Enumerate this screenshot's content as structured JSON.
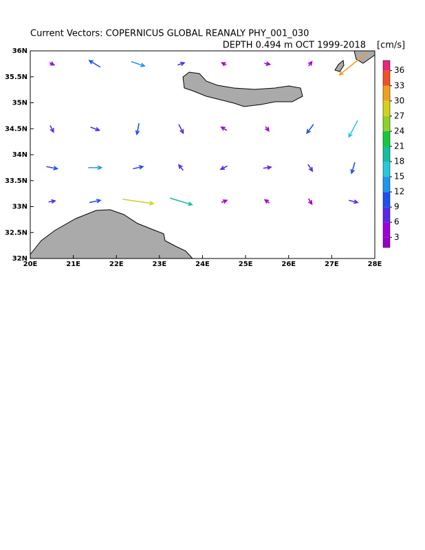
{
  "chart_data": {
    "type": "vector",
    "title": "Current Vectors: COPERNICUS GLOBAL REANALY PHY_001_030",
    "subtitle": "DEPTH 0.494 m   OCT 1999-2018",
    "unit": "[cm/s]",
    "xlim": [
      20,
      28
    ],
    "ylim": [
      32,
      36
    ],
    "xticks": [
      {
        "value": 20,
        "label": "20E"
      },
      {
        "value": 21,
        "label": "21E"
      },
      {
        "value": 22,
        "label": "22E"
      },
      {
        "value": 23,
        "label": "23E"
      },
      {
        "value": 24,
        "label": "24E"
      },
      {
        "value": 25,
        "label": "25E"
      },
      {
        "value": 26,
        "label": "26E"
      },
      {
        "value": 27,
        "label": "27E"
      },
      {
        "value": 28,
        "label": "28E"
      }
    ],
    "yticks": [
      {
        "value": 32,
        "label": "32N"
      },
      {
        "value": 32.5,
        "label": "32.5N"
      },
      {
        "value": 33,
        "label": "33N"
      },
      {
        "value": 33.5,
        "label": "33.5N"
      },
      {
        "value": 34,
        "label": "34N"
      },
      {
        "value": 34.5,
        "label": "34.5N"
      },
      {
        "value": 35,
        "label": "35N"
      },
      {
        "value": 35.5,
        "label": "35.5N"
      },
      {
        "value": 36,
        "label": "36N"
      }
    ],
    "clim": [
      1,
      38
    ],
    "cticks": [
      3,
      6,
      9,
      12,
      15,
      18,
      21,
      24,
      27,
      30,
      33,
      36
    ],
    "colors": [
      "#9400c8",
      "#a000d8",
      "#5a28e6",
      "#1e50f0",
      "#1e96f0",
      "#28c8dc",
      "#14bea0",
      "#14c83c",
      "#8cd228",
      "#d2d21e",
      "#f0a01e",
      "#f05028",
      "#e6287a"
    ],
    "vectors": {
      "lon": [
        20.5,
        21.5,
        22.5,
        23.5,
        24.5,
        25.5,
        26.5,
        27.5,
        20.5,
        21.5,
        22.5,
        23.5,
        24.5,
        25.5,
        26.5,
        27.5,
        20.5,
        21.5,
        22.5,
        23.5,
        24.5,
        25.5,
        26.5,
        27.5,
        20.5,
        21.5,
        22.5,
        23.5,
        24.5,
        25.5,
        26.5,
        27.5
      ],
      "lat": [
        35.75,
        35.75,
        35.75,
        35.75,
        35.75,
        35.75,
        35.75,
        35.75,
        34.5,
        34.5,
        34.5,
        34.5,
        34.5,
        34.5,
        34.5,
        34.5,
        33.75,
        33.75,
        33.75,
        33.75,
        33.75,
        33.75,
        33.75,
        33.75,
        33.1,
        33.1,
        33.1,
        33.1,
        33.1,
        33.1,
        33.1,
        33.1
      ],
      "u": [
        4,
        -10,
        12,
        6,
        -4,
        5,
        3,
        -25,
        3,
        8,
        -2,
        4,
        -5,
        3,
        -6,
        -8,
        10,
        12,
        9,
        -4,
        -6,
        7,
        4,
        -3,
        6,
        10,
        28,
        20,
        5,
        -4,
        3,
        8
      ],
      "v": [
        -2,
        6,
        -4,
        2,
        2,
        -1,
        4,
        -20,
        -6,
        -3,
        -10,
        -8,
        3,
        -4,
        -8,
        -15,
        -2,
        0,
        2,
        5,
        -3,
        1,
        -6,
        -10,
        1,
        2,
        -4,
        -6,
        2,
        3,
        -5,
        -2
      ]
    }
  }
}
